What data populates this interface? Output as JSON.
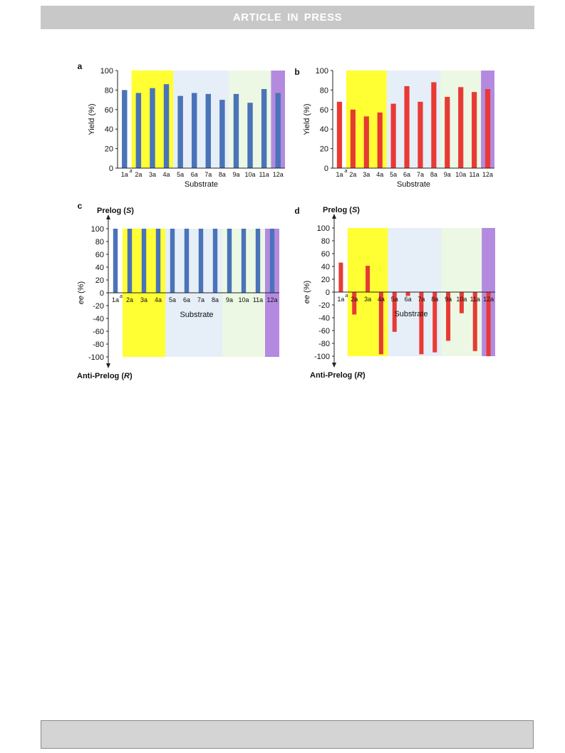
{
  "header": {
    "title": "ARTICLE  IN  PRESS"
  },
  "colors": {
    "blue": "#4a73b8",
    "red": "#e83a35",
    "yellow": "#ffff33",
    "light_blue": "#e6eef8",
    "light_green": "#ecf8e3",
    "purple": "#b48ae0"
  },
  "chart_data": [
    {
      "panel": "a",
      "type": "bar",
      "title": "",
      "xlabel": "Substrate",
      "ylabel": "Yield (%)",
      "ylim": [
        0,
        100
      ],
      "categories": [
        "1a",
        "2a",
        "3a",
        "4a",
        "5a",
        "6a",
        "7a",
        "8a",
        "9a",
        "10a",
        "11a",
        "12a"
      ],
      "first_category_superscript": "a",
      "values": [
        80,
        77,
        82,
        86,
        74,
        77,
        76,
        70,
        76,
        67,
        81,
        77
      ],
      "bar_color": "#4a73b8",
      "yticks": [
        "100",
        "80",
        "60",
        "40",
        "20",
        "0"
      ]
    },
    {
      "panel": "b",
      "type": "bar",
      "title": "",
      "xlabel": "Substrate",
      "ylabel": "Yield (%)",
      "ylim": [
        0,
        100
      ],
      "categories": [
        "1a",
        "2a",
        "3a",
        "4a",
        "5a",
        "6a",
        "7a",
        "8a",
        "9a",
        "10a",
        "11a",
        "12a"
      ],
      "first_category_superscript": "a",
      "values": [
        68,
        60,
        53,
        57,
        66,
        84,
        68,
        88,
        73,
        83,
        78,
        81
      ],
      "bar_color": "#e83a35",
      "yticks": [
        "100",
        "80",
        "60",
        "40",
        "20",
        "0"
      ]
    },
    {
      "panel": "c",
      "type": "bar",
      "title": "",
      "xlabel": "Substrate",
      "ylabel": "ee (%)",
      "ylim": [
        -100,
        100
      ],
      "top_label": "Prelog (S)",
      "bottom_label": "Anti-Prelog (R)",
      "categories": [
        "1a",
        "2a",
        "3a",
        "4a",
        "5a",
        "6a",
        "7a",
        "8a",
        "9a",
        "10a",
        "11a",
        "12a"
      ],
      "first_category_superscript": "a",
      "values": [
        100,
        100,
        100,
        100,
        100,
        100,
        100,
        100,
        100,
        100,
        100,
        100
      ],
      "bar_color": "#4a73b8",
      "yticks": [
        "100",
        "80",
        "60",
        "40",
        "20",
        "0",
        "-20",
        "-40",
        "-60",
        "-80",
        "-100"
      ]
    },
    {
      "panel": "d",
      "type": "bar",
      "title": "",
      "xlabel": "Substrate",
      "ylabel": "ee (%)",
      "ylim": [
        -100,
        100
      ],
      "top_label": "Prelog (S)",
      "bottom_label": "Anti-Prelog (R)",
      "categories": [
        "1a",
        "2a",
        "3a",
        "4a",
        "5a",
        "6a",
        "7a",
        "8a",
        "9a",
        "10a",
        "11a",
        "12a"
      ],
      "first_category_superscript": "a",
      "values": [
        46,
        -35,
        41,
        -97,
        -62,
        -6,
        -97,
        -94,
        -76,
        -33,
        -92,
        -100
      ],
      "bar_color": "#e83a35",
      "yticks": [
        "100",
        "80",
        "60",
        "40",
        "20",
        "0",
        "-20",
        "-40",
        "-60",
        "-80",
        "-100"
      ]
    }
  ]
}
